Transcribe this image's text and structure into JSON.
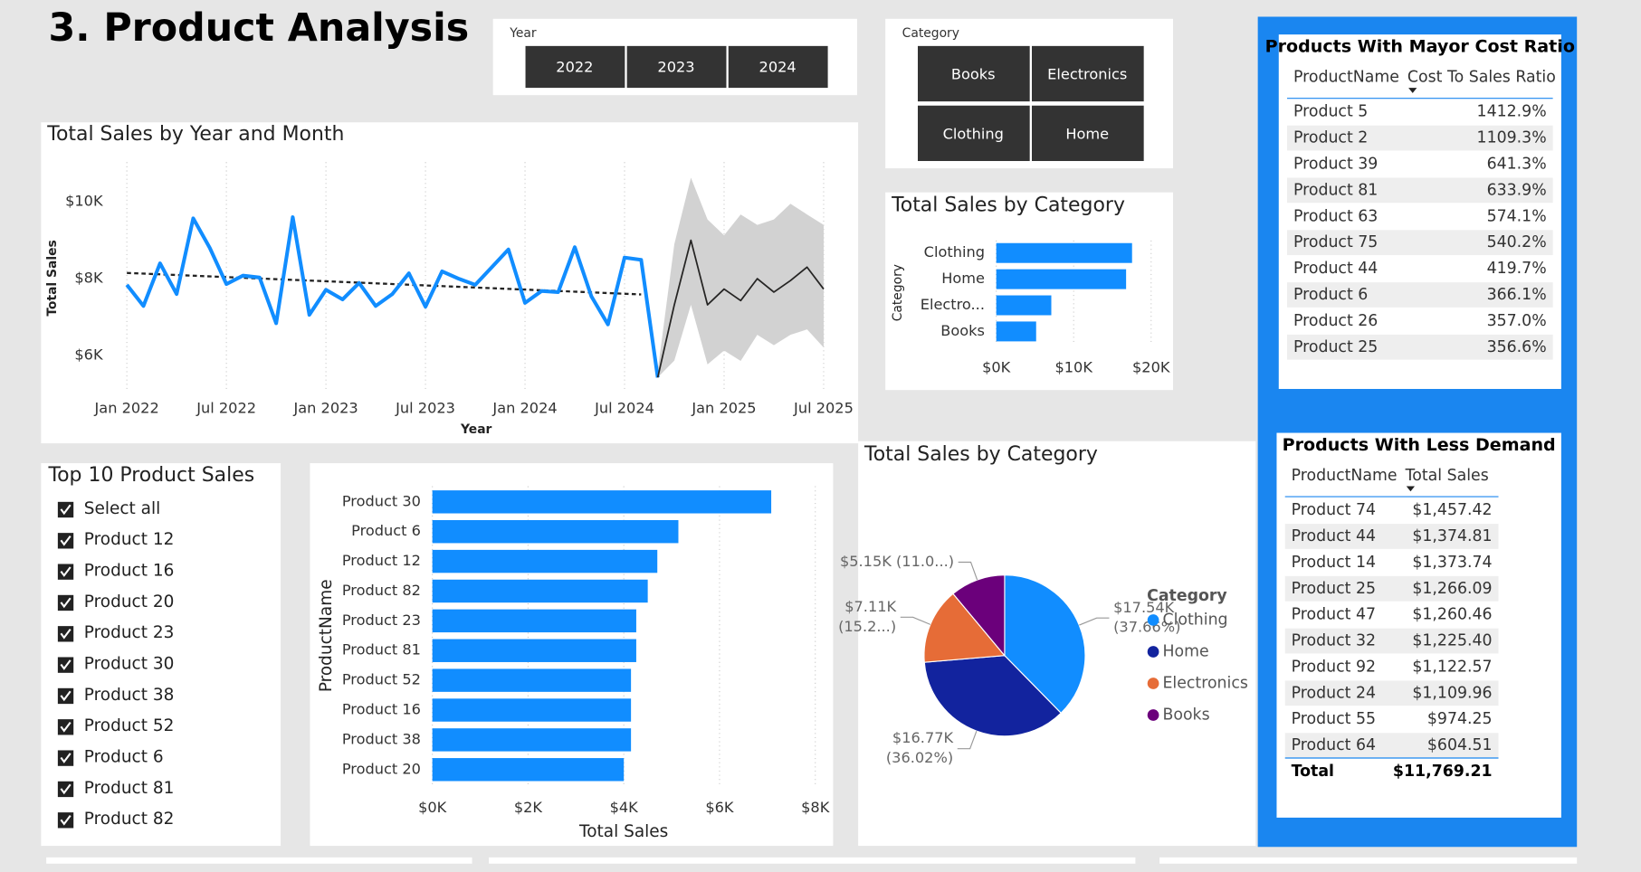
{
  "title": "3. Product Analysis",
  "year_slicer": {
    "label": "Year",
    "options": [
      "2022",
      "2023",
      "2024"
    ]
  },
  "category_slicer": {
    "label": "Category",
    "options": [
      "Books",
      "Electronics",
      "Clothing",
      "Home"
    ]
  },
  "product_slicer": {
    "title": "Top 10 Product Sales",
    "options": [
      "Select all",
      "Product 12",
      "Product 16",
      "Product 20",
      "Product 23",
      "Product 30",
      "Product 38",
      "Product 52",
      "Product 6",
      "Product 81",
      "Product 82"
    ]
  },
  "cost_table": {
    "title": "Products With Mayor Cost Ratio",
    "columns": [
      "ProductName",
      "Cost To Sales Ratio"
    ],
    "rows": [
      [
        "Product 5",
        "1412.9%"
      ],
      [
        "Product 2",
        "1109.3%"
      ],
      [
        "Product 39",
        "641.3%"
      ],
      [
        "Product 81",
        "633.9%"
      ],
      [
        "Product 63",
        "574.1%"
      ],
      [
        "Product 75",
        "540.2%"
      ],
      [
        "Product 44",
        "419.7%"
      ],
      [
        "Product 6",
        "366.1%"
      ],
      [
        "Product 26",
        "357.0%"
      ],
      [
        "Product 25",
        "356.6%"
      ]
    ]
  },
  "demand_table": {
    "title": "Products With Less Demand",
    "columns": [
      "ProductName",
      "Total Sales"
    ],
    "rows": [
      [
        "Product 74",
        "$1,457.42"
      ],
      [
        "Product 44",
        "$1,374.81"
      ],
      [
        "Product 14",
        "$1,373.74"
      ],
      [
        "Product 25",
        "$1,266.09"
      ],
      [
        "Product 47",
        "$1,260.46"
      ],
      [
        "Product 32",
        "$1,225.40"
      ],
      [
        "Product 92",
        "$1,122.57"
      ],
      [
        "Product 24",
        "$1,109.96"
      ],
      [
        "Product 55",
        "$974.25"
      ],
      [
        "Product 64",
        "$604.51"
      ]
    ],
    "total": [
      "Total",
      "$11,769.21"
    ]
  },
  "chart_data": [
    {
      "type": "line",
      "title": "Total Sales by Year and Month",
      "x_label": "Year",
      "y_label": "Total Sales",
      "x": [
        "Jan 2022",
        "Feb 2022",
        "Mar 2022",
        "Apr 2022",
        "May 2022",
        "Jun 2022",
        "Jul 2022",
        "Aug 2022",
        "Sep 2022",
        "Oct 2022",
        "Nov 2022",
        "Dec 2022",
        "Jan 2023",
        "Feb 2023",
        "Mar 2023",
        "Apr 2023",
        "May 2023",
        "Jun 2023",
        "Jul 2023",
        "Aug 2023",
        "Sep 2023",
        "Oct 2023",
        "Nov 2023",
        "Dec 2023",
        "Jan 2024",
        "Feb 2024",
        "Mar 2024",
        "Apr 2024",
        "May 2024",
        "Jun 2024",
        "Jul 2024",
        "Aug 2024",
        "Sep 2024",
        "Oct 2024",
        "Nov 2024",
        "Dec 2024",
        "Jan 2025",
        "Feb 2025",
        "Mar 2025",
        "Apr 2025",
        "May 2025",
        "Jun 2025",
        "Jul 2025"
      ],
      "series": [
        {
          "color": "#118dff",
          "values": [
            7840,
            7290,
            8400,
            7600,
            9570,
            8800,
            7860,
            8080,
            8030,
            6840,
            9600,
            7060,
            7710,
            7460,
            7890,
            7290,
            7600,
            8140,
            7270,
            8190,
            8000,
            7840,
            8300,
            8760,
            7370,
            7680,
            7650,
            8820,
            7540,
            6810,
            8550,
            8490,
            5430,
            null,
            null,
            null,
            null,
            null,
            null,
            null,
            null,
            null,
            null
          ]
        },
        {
          "color": "#252423",
          "values": [
            null,
            null,
            null,
            null,
            null,
            null,
            null,
            null,
            null,
            null,
            null,
            null,
            null,
            null,
            null,
            null,
            null,
            null,
            null,
            null,
            null,
            null,
            null,
            null,
            null,
            null,
            null,
            null,
            null,
            null,
            null,
            null,
            5430,
            7320,
            9000,
            7320,
            7730,
            7430,
            8000,
            7650,
            7950,
            8300,
            7730
          ]
        }
      ],
      "forecast_band": {
        "color": "#d2d2d2",
        "upper": [
          null,
          null,
          null,
          null,
          null,
          null,
          null,
          null,
          null,
          null,
          null,
          null,
          null,
          null,
          null,
          null,
          null,
          null,
          null,
          null,
          null,
          null,
          null,
          null,
          null,
          null,
          null,
          null,
          null,
          null,
          null,
          null,
          5600,
          8900,
          10630,
          9540,
          9130,
          9670,
          9400,
          9540,
          9950,
          9670,
          9400
        ],
        "lower": [
          null,
          null,
          null,
          null,
          null,
          null,
          null,
          null,
          null,
          null,
          null,
          null,
          null,
          null,
          null,
          null,
          null,
          null,
          null,
          null,
          null,
          null,
          null,
          null,
          null,
          null,
          null,
          null,
          null,
          null,
          null,
          null,
          5430,
          5870,
          7320,
          5770,
          6130,
          5860,
          6540,
          6270,
          6540,
          6680,
          6210
        ]
      },
      "trend": {
        "color": "#222222",
        "x": [
          "Jan 2022",
          "Aug 2024"
        ],
        "values": [
          8150,
          7590
        ]
      },
      "xlim": [
        "Jan 2022",
        "Jul 2025"
      ],
      "xticks": [
        "Jan 2022",
        "Jul 2022",
        "Jan 2023",
        "Jul 2023",
        "Jan 2024",
        "Jul 2024",
        "Jan 2025",
        "Jul 2025"
      ],
      "ylim": [
        5050,
        11170
      ],
      "yticks": [
        {
          "value": 6000,
          "label": "$6K"
        },
        {
          "value": 8000,
          "label": "$8K"
        },
        {
          "value": 10000,
          "label": "$10K"
        }
      ],
      "grid": "x"
    },
    {
      "type": "bar",
      "orientation": "horizontal",
      "title": "Total Sales by Category",
      "y_label": "Category",
      "color": "#118dff",
      "categories": [
        "Clothing",
        "Home",
        "Electro...",
        "Books"
      ],
      "values": [
        17540,
        16770,
        7110,
        5150
      ],
      "xlim": [
        0,
        20000
      ],
      "xticks": [
        {
          "value": 0,
          "label": "$0K"
        },
        {
          "value": 10000,
          "label": "$10K"
        },
        {
          "value": 20000,
          "label": "$20K"
        }
      ],
      "grid": true
    },
    {
      "type": "bar",
      "orientation": "horizontal",
      "x_label": "Total Sales",
      "y_label": "ProductName",
      "color": "#118dff",
      "categories": [
        "Product 30",
        "Product 6",
        "Product 12",
        "Product 82",
        "Product 23",
        "Product 81",
        "Product 52",
        "Product 16",
        "Product 38",
        "Product 20"
      ],
      "values": [
        7080,
        5140,
        4700,
        4500,
        4260,
        4260,
        4150,
        4150,
        4150,
        4000
      ],
      "xlim": [
        0,
        8000
      ],
      "xticks": [
        {
          "value": 0,
          "label": "$0K"
        },
        {
          "value": 2000,
          "label": "$2K"
        },
        {
          "value": 4000,
          "label": "$4K"
        },
        {
          "value": 6000,
          "label": "$6K"
        },
        {
          "value": 8000,
          "label": "$8K"
        }
      ],
      "grid": true
    },
    {
      "type": "pie",
      "title": "Total Sales by Category",
      "legend_title": "Category",
      "categories": [
        "Clothing",
        "Home",
        "Electronics",
        "Books"
      ],
      "values": [
        17540,
        16770,
        7110,
        5150
      ],
      "value_labels": [
        [
          "$17.54K",
          "(37.66%)"
        ],
        [
          "$16.77K",
          "(36.02%)"
        ],
        [
          "$7.11K",
          "(15.2...)"
        ],
        [
          "$5.15K (11.0...)"
        ]
      ],
      "colors": [
        "#118dff",
        "#12239e",
        "#e66c37",
        "#6b007b"
      ]
    }
  ]
}
